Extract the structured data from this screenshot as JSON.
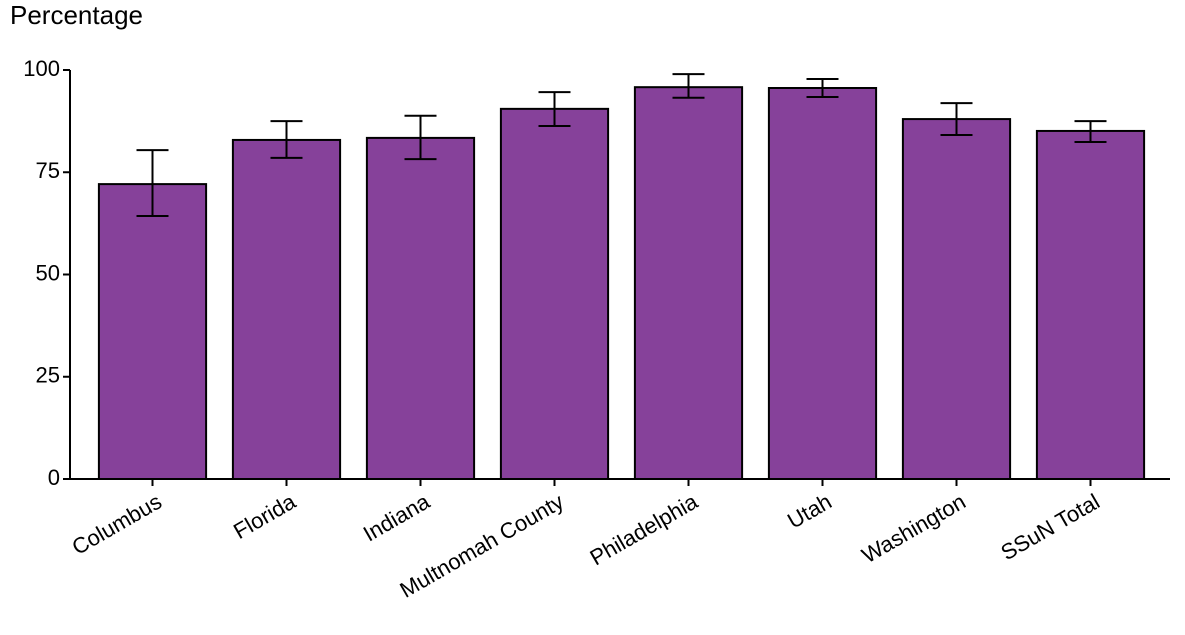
{
  "chart_data": {
    "type": "bar",
    "y_label": "Percentage",
    "categories": [
      "Columbus",
      "Florida",
      "Indiana",
      "Multnomah County",
      "Philadelphia",
      "Utah",
      "Washington",
      "SSuN Total"
    ],
    "values": [
      72.1,
      82.9,
      83.4,
      90.5,
      95.8,
      95.6,
      88.0,
      85.1
    ],
    "lower": [
      64.3,
      78.5,
      78.2,
      86.3,
      93.2,
      93.4,
      84.1,
      82.4
    ],
    "upper": [
      80.4,
      87.5,
      88.8,
      94.6,
      99.0,
      97.8,
      91.9,
      87.5
    ],
    "color": "#86419a",
    "ylim": [
      0,
      100
    ],
    "yticks": [
      0,
      25,
      50,
      75,
      100
    ],
    "grid": false
  }
}
